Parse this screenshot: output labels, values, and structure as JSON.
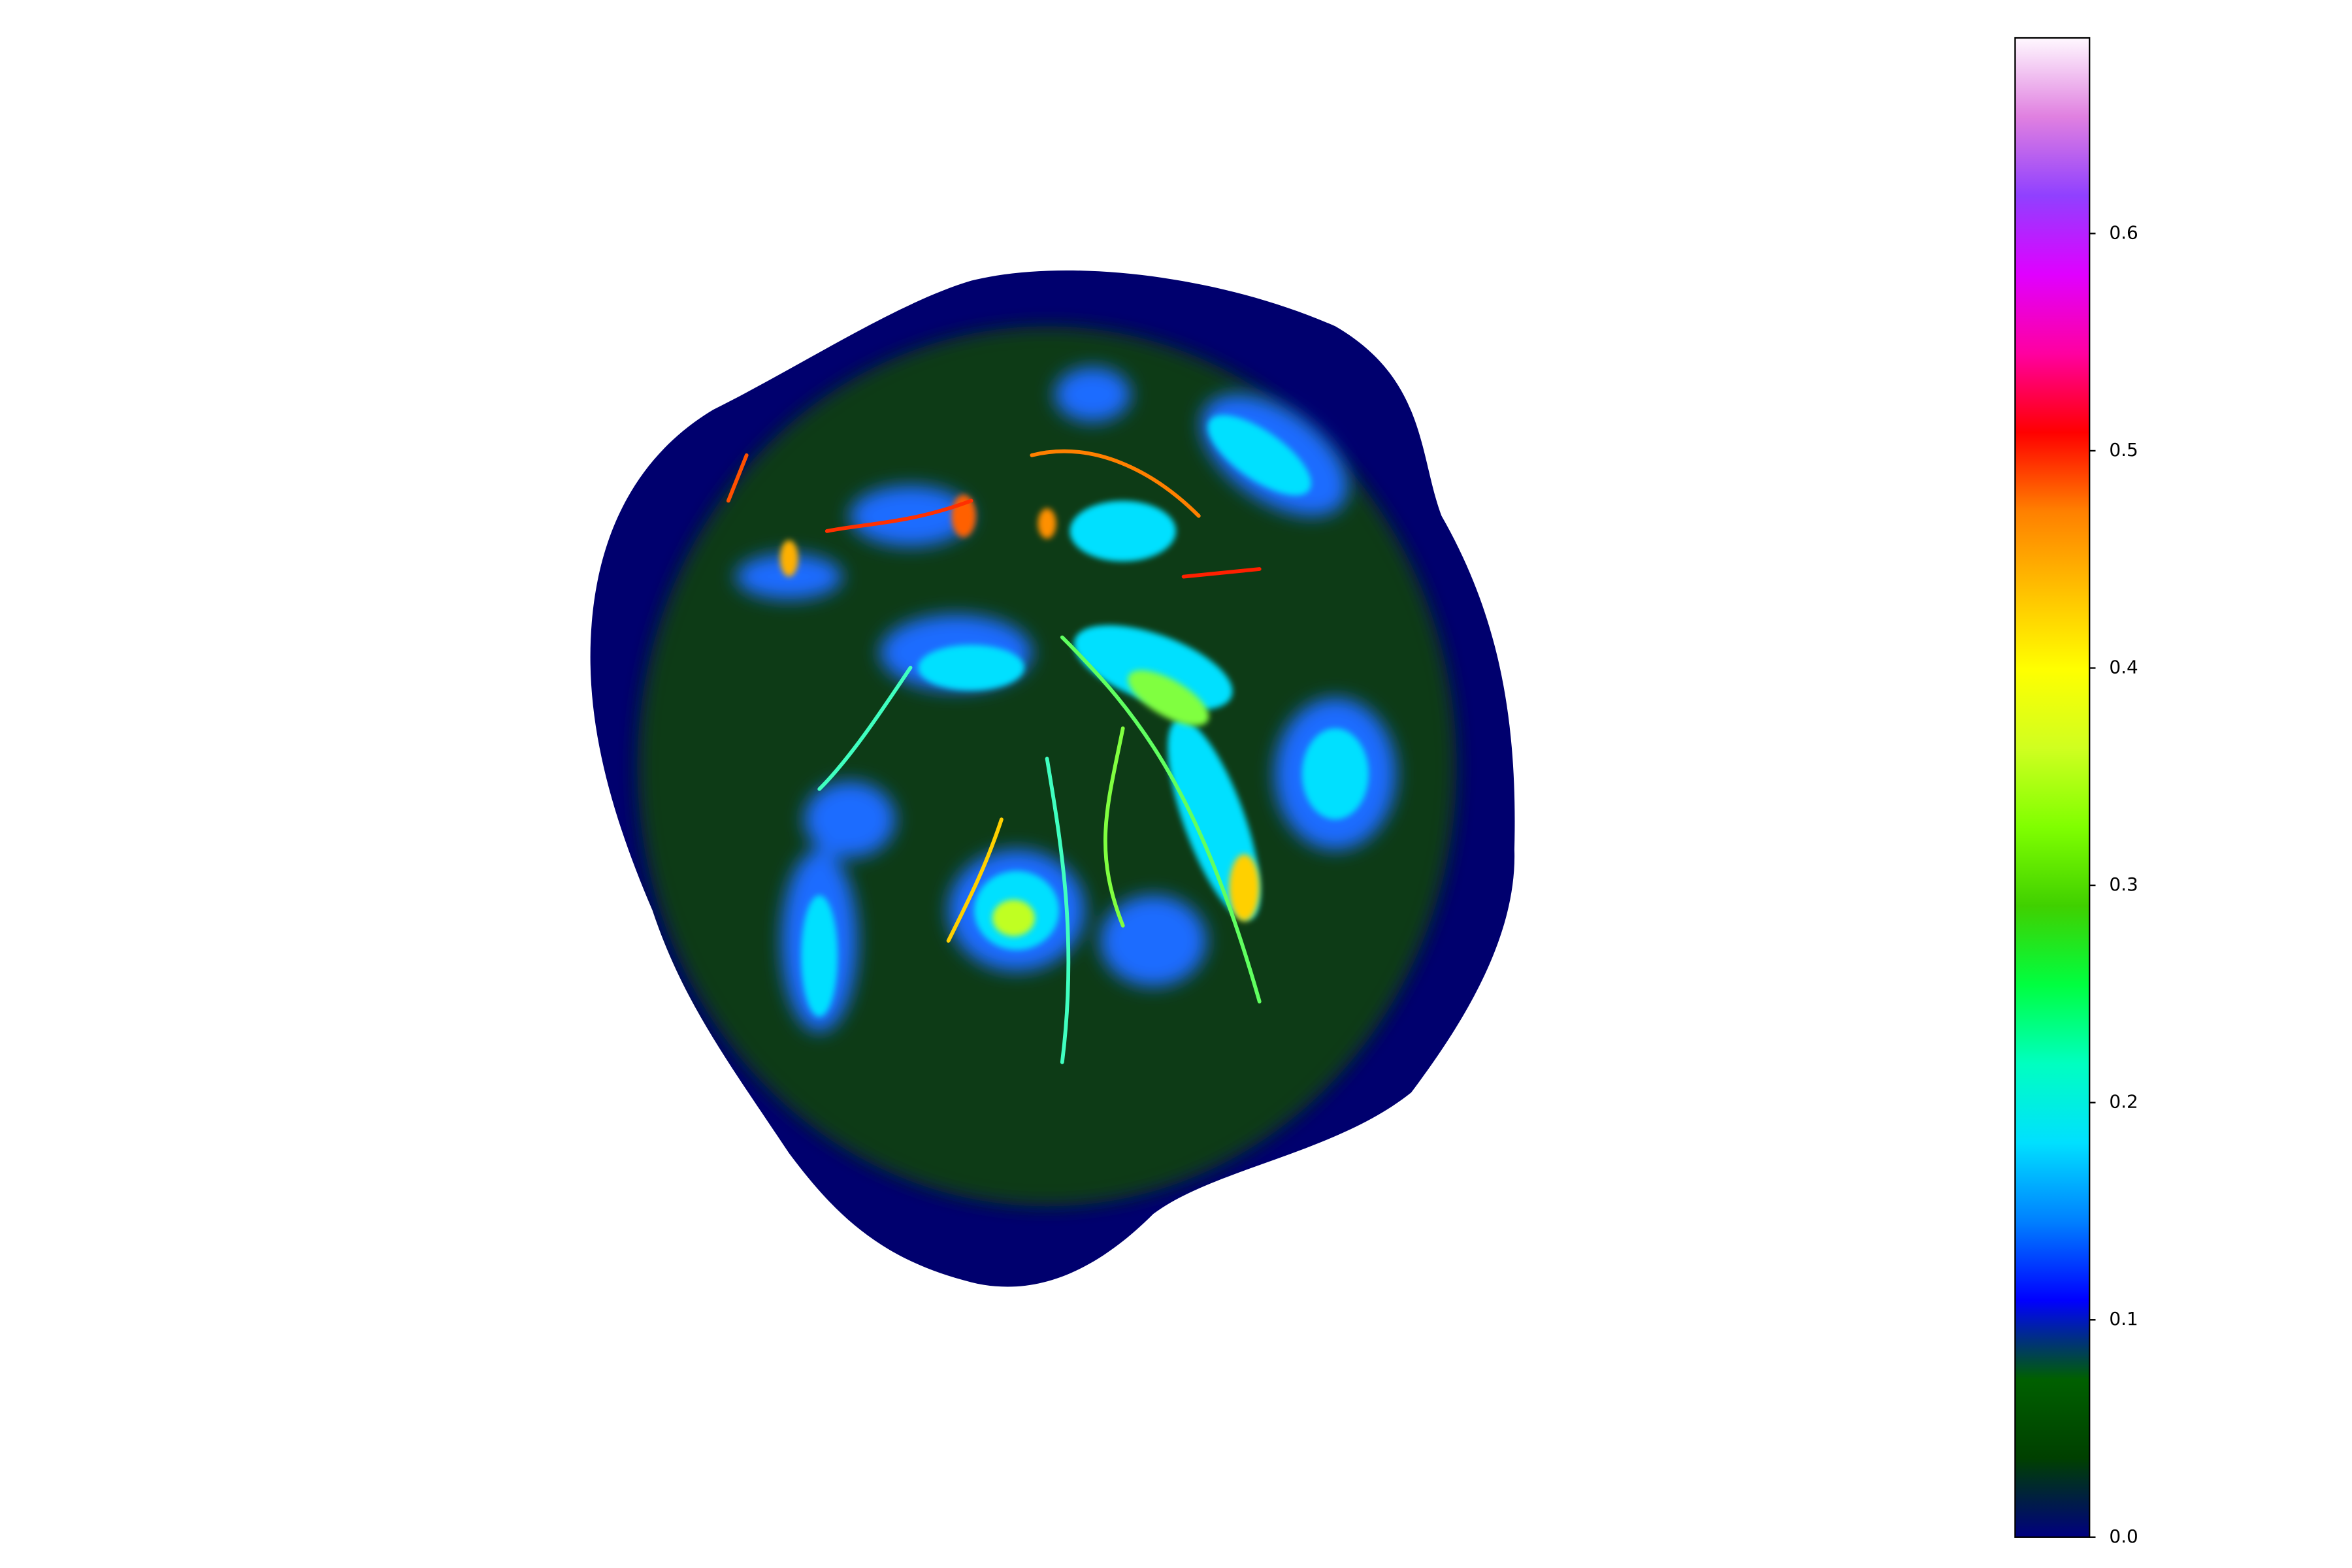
{
  "chart_data": {
    "type": "heatmap",
    "clim": [
      0,
      0.69
    ],
    "cticks": [
      {
        "value": 0,
        "label": "0.0"
      },
      0.1,
      0.2,
      0.3,
      0.4,
      0.5,
      0.6
    ],
    "colormap": [
      "#000080",
      "#004000",
      "#006000",
      "#0000ff",
      "#0080ff",
      "#00e0ff",
      "#00ffc0",
      "#00ff40",
      "#40d000",
      "#80ff00",
      "#d0ff20",
      "#ffff00",
      "#ffc000",
      "#ff8000",
      "#ff0000",
      "#ff00a0",
      "#e000ff",
      "#9040ff",
      "#e080e0",
      "#fff8ff"
    ]
  }
}
